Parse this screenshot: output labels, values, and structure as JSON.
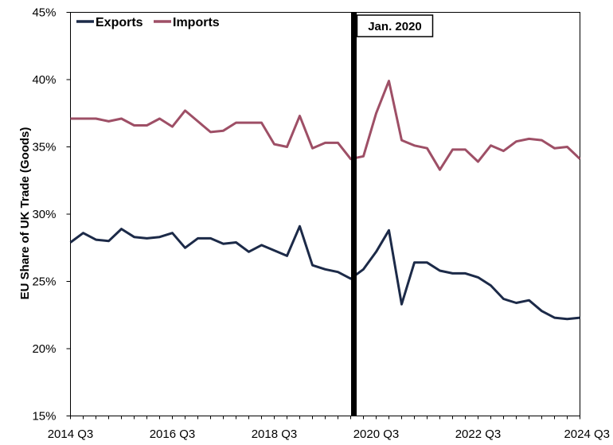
{
  "chart_data": {
    "type": "line",
    "xlabel": "",
    "ylabel": "EU Share of UK Trade (Goods)",
    "ylim": [
      15,
      45
    ],
    "yticks": [
      "15%",
      "20%",
      "25%",
      "30%",
      "35%",
      "40%",
      "45%"
    ],
    "ytick_values": [
      15,
      20,
      25,
      30,
      35,
      40,
      45
    ],
    "xtick_labels": [
      "2014 Q3",
      "2016 Q3",
      "2018 Q3",
      "2020 Q3",
      "2022 Q3",
      "2024 Q3"
    ],
    "xtick_indices": [
      0,
      8,
      16,
      24,
      32,
      40
    ],
    "legend_position": "top-left",
    "grid": false,
    "annotation": {
      "label": "Jan. 2020",
      "index": 22.25
    },
    "series": [
      {
        "name": "Exports",
        "color": "#1c2a48",
        "values": [
          27.9,
          28.6,
          28.1,
          28.0,
          28.9,
          28.3,
          28.2,
          28.3,
          28.6,
          27.5,
          28.2,
          28.2,
          27.8,
          27.9,
          27.2,
          27.7,
          27.3,
          26.9,
          29.1,
          26.2,
          25.9,
          25.7,
          25.2,
          25.9,
          27.2,
          28.8,
          23.3,
          26.4,
          26.4,
          25.8,
          25.6,
          25.6,
          25.3,
          24.7,
          23.7,
          23.4,
          23.6,
          22.8,
          22.3,
          22.2,
          22.3
        ]
      },
      {
        "name": "Imports",
        "color": "#9e4f66",
        "values": [
          37.1,
          37.1,
          37.1,
          36.9,
          37.1,
          36.6,
          36.6,
          37.1,
          36.5,
          37.7,
          36.9,
          36.1,
          36.2,
          36.8,
          36.8,
          36.8,
          35.2,
          35.0,
          37.3,
          34.9,
          35.3,
          35.3,
          34.1,
          34.3,
          37.5,
          39.9,
          35.5,
          35.1,
          34.9,
          33.3,
          34.8,
          34.8,
          33.9,
          35.1,
          34.7,
          35.4,
          35.6,
          35.5,
          34.9,
          35.0,
          34.1
        ]
      }
    ]
  }
}
